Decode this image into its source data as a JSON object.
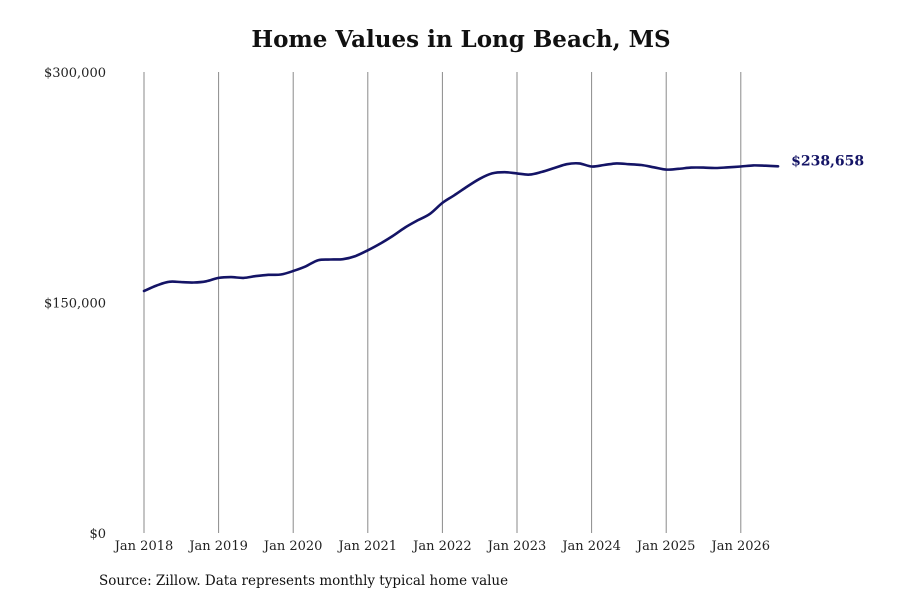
{
  "chart_data": {
    "type": "line",
    "title": "Home Values in Long Beach, MS",
    "xlabel": "",
    "ylabel": "",
    "ylim": [
      0,
      300000
    ],
    "xlim": [
      "2018-01",
      "2026-07"
    ],
    "y_ticks": [
      {
        "value": 0,
        "label": "$0"
      },
      {
        "value": 150000,
        "label": "$150,000"
      },
      {
        "value": 300000,
        "label": "$300,000"
      }
    ],
    "x_ticks": [
      {
        "value": "2018-01",
        "label": "Jan 2018"
      },
      {
        "value": "2019-01",
        "label": "Jan 2019"
      },
      {
        "value": "2020-01",
        "label": "Jan 2020"
      },
      {
        "value": "2021-01",
        "label": "Jan 2021"
      },
      {
        "value": "2022-01",
        "label": "Jan 2022"
      },
      {
        "value": "2023-01",
        "label": "Jan 2023"
      },
      {
        "value": "2024-01",
        "label": "Jan 2024"
      },
      {
        "value": "2025-01",
        "label": "Jan 2025"
      },
      {
        "value": "2026-01",
        "label": "Jan 2026"
      }
    ],
    "grid": {
      "vertical": true,
      "horizontal": false
    },
    "series": [
      {
        "color": "#141466",
        "end_label": "$238,658",
        "x": [
          "2018-01",
          "2018-03",
          "2018-05",
          "2018-07",
          "2018-09",
          "2018-11",
          "2019-01",
          "2019-03",
          "2019-05",
          "2019-07",
          "2019-09",
          "2019-11",
          "2020-01",
          "2020-03",
          "2020-05",
          "2020-07",
          "2020-09",
          "2020-11",
          "2021-01",
          "2021-03",
          "2021-05",
          "2021-07",
          "2021-09",
          "2021-11",
          "2022-01",
          "2022-03",
          "2022-05",
          "2022-07",
          "2022-09",
          "2022-11",
          "2023-01",
          "2023-03",
          "2023-05",
          "2023-07",
          "2023-09",
          "2023-11",
          "2024-01",
          "2024-03",
          "2024-05",
          "2024-07",
          "2024-09",
          "2024-11",
          "2025-01",
          "2025-03",
          "2025-05",
          "2025-07",
          "2025-09",
          "2025-11",
          "2026-01",
          "2026-03",
          "2026-05",
          "2026-07"
        ],
        "y": [
          157500,
          161000,
          163500,
          163300,
          163000,
          163800,
          166000,
          166500,
          166000,
          167200,
          168000,
          168200,
          170500,
          173500,
          177500,
          178000,
          178200,
          180200,
          184000,
          188300,
          193300,
          198800,
          203400,
          207700,
          214800,
          220000,
          225500,
          230500,
          234000,
          234800,
          234000,
          233200,
          235000,
          237500,
          240000,
          240500,
          238500,
          239500,
          240500,
          240000,
          239500,
          238000,
          236500,
          237000,
          237800,
          237800,
          237500,
          238000,
          238500,
          239200,
          239000,
          238658
        ]
      }
    ]
  },
  "source": "Source: Zillow. Data represents monthly typical home value"
}
